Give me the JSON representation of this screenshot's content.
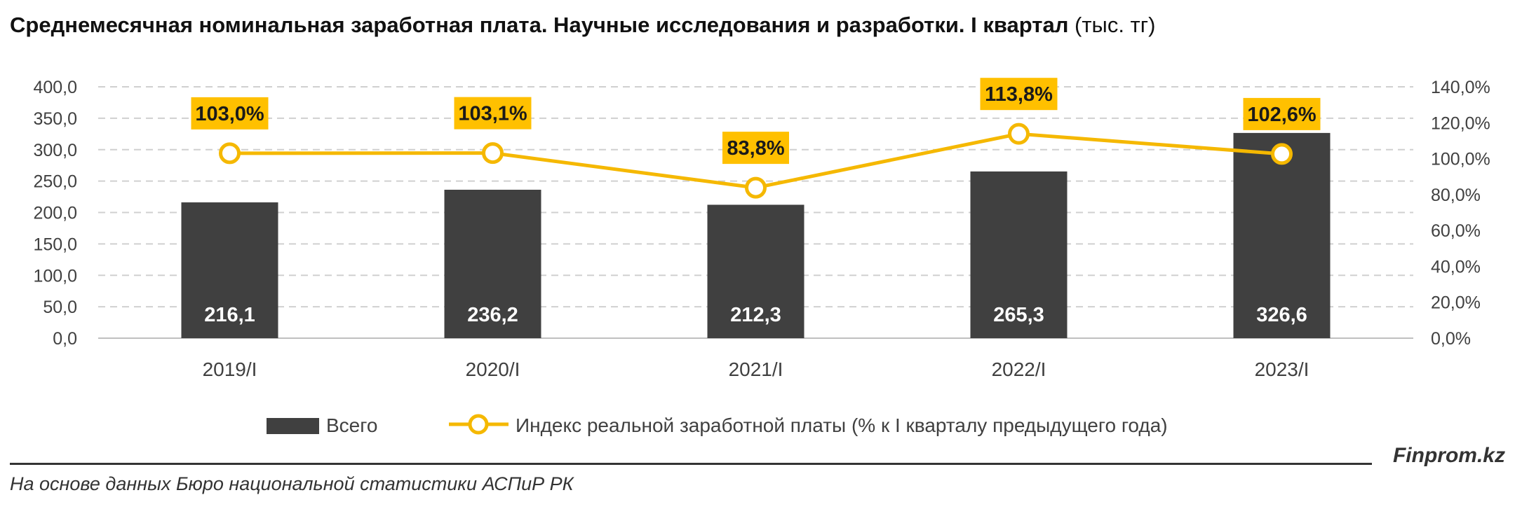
{
  "title": {
    "bold": "Среднемесячная номинальная заработная плата. Научные исследования и разработки. I квартал",
    "unit": "(тыс. тг)"
  },
  "brand": "Finprom.kz",
  "source": "На основе данных Бюро национальной статистики АСПиР РК",
  "colors": {
    "bar": "#404040",
    "line": "#F5B800",
    "label_box": "#FFC000",
    "grid": "#D0D0D0",
    "axis": "#BFBFBF"
  },
  "chart_data": {
    "type": "bar",
    "categories": [
      "2019/I",
      "2020/I",
      "2021/I",
      "2022/I",
      "2023/I"
    ],
    "series": [
      {
        "name": "Всего",
        "type": "bar",
        "axis": "left",
        "values": [
          216.1,
          236.2,
          212.3,
          265.3,
          326.6
        ],
        "labels": [
          "216,1",
          "236,2",
          "212,3",
          "265,3",
          "326,6"
        ]
      },
      {
        "name": "Индекс реальной заработной платы (% к I кварталу предыдущего года)",
        "type": "line",
        "axis": "right",
        "values": [
          103.0,
          103.1,
          83.8,
          113.8,
          102.6
        ],
        "labels": [
          "103,0%",
          "103,1%",
          "83,8%",
          "113,8%",
          "102,6%"
        ]
      }
    ],
    "y_left": {
      "min": 0,
      "max": 400,
      "step": 50,
      "tick_labels": [
        "0,0",
        "50,0",
        "100,0",
        "150,0",
        "200,0",
        "250,0",
        "300,0",
        "350,0",
        "400,0"
      ]
    },
    "y_right": {
      "min": 0,
      "max": 140,
      "step": 20,
      "tick_labels": [
        "0,0%",
        "20,0%",
        "40,0%",
        "60,0%",
        "80,0%",
        "100,0%",
        "120,0%",
        "140,0%"
      ]
    },
    "grid": true,
    "legend": "bottom"
  }
}
